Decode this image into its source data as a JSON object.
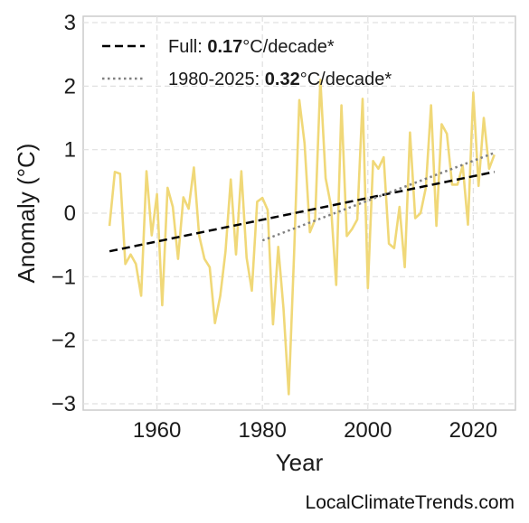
{
  "chart_data": {
    "type": "line",
    "xlabel": "Year",
    "ylabel": "Anomaly (°C)",
    "xlim": [
      1946,
      2028
    ],
    "ylim": [
      -3.1,
      3.1
    ],
    "x_ticks": [
      1960,
      1980,
      2000,
      2020
    ],
    "x_tick_labels": [
      "1960",
      "1980",
      "2000",
      "2020"
    ],
    "y_ticks": [
      3,
      2,
      1,
      0,
      -1,
      -2,
      -3
    ],
    "y_tick_labels": [
      "3",
      "2",
      "1",
      "0",
      "−1",
      "−2",
      "−3"
    ],
    "grid": true,
    "legend_position": "top-left",
    "series": [
      {
        "color": "#f0d878",
        "x": [
          1951,
          1952,
          1953,
          1954,
          1955,
          1956,
          1957,
          1958,
          1959,
          1960,
          1961,
          1962,
          1963,
          1964,
          1965,
          1966,
          1967,
          1968,
          1969,
          1970,
          1971,
          1972,
          1973,
          1974,
          1975,
          1976,
          1977,
          1978,
          1979,
          1980,
          1981,
          1982,
          1983,
          1984,
          1985,
          1986,
          1987,
          1988,
          1989,
          1990,
          1991,
          1992,
          1993,
          1994,
          1995,
          1996,
          1997,
          1998,
          1999,
          2000,
          2001,
          2002,
          2003,
          2004,
          2005,
          2006,
          2007,
          2008,
          2009,
          2010,
          2011,
          2012,
          2013,
          2014,
          2015,
          2016,
          2017,
          2018,
          2019,
          2020,
          2021,
          2022,
          2023,
          2024
        ],
        "values": [
          -0.2,
          0.65,
          0.62,
          -0.8,
          -0.65,
          -0.8,
          -1.3,
          0.66,
          -0.35,
          0.3,
          -1.45,
          0.4,
          0.1,
          -0.72,
          0.25,
          0.07,
          0.72,
          -0.35,
          -0.72,
          -0.85,
          -1.73,
          -1.3,
          -0.6,
          0.53,
          -0.65,
          0.66,
          -0.7,
          -1.22,
          0.18,
          0.24,
          0.05,
          -1.75,
          -0.53,
          -1.5,
          -2.85,
          -0.65,
          1.78,
          1.1,
          -0.3,
          -0.1,
          2.1,
          0.55,
          0.12,
          -1.13,
          1.7,
          -0.36,
          -0.25,
          -0.1,
          1.8,
          -1.18,
          0.82,
          0.7,
          0.88,
          -0.48,
          -0.55,
          0.1,
          -0.85,
          1.27,
          -0.08,
          0.0,
          0.4,
          1.7,
          -0.2,
          1.4,
          1.25,
          0.45,
          0.45,
          0.75,
          -0.18,
          1.9,
          0.43,
          1.5,
          0.7,
          0.92
        ]
      }
    ],
    "trends": [
      {
        "name": "Full",
        "rate": "0.17",
        "unit": "°C/decade*",
        "x": [
          1951,
          2024
        ],
        "y": [
          -0.6,
          0.65
        ],
        "color": "#000000",
        "dash": "dashed"
      },
      {
        "name": "1980-2025",
        "rate": "0.32",
        "unit": "°C/decade*",
        "x": [
          1980,
          2024
        ],
        "y": [
          -0.43,
          0.95
        ],
        "color": "#808080",
        "dash": "dotted"
      }
    ]
  },
  "watermark": "LocalClimateTrends.com"
}
